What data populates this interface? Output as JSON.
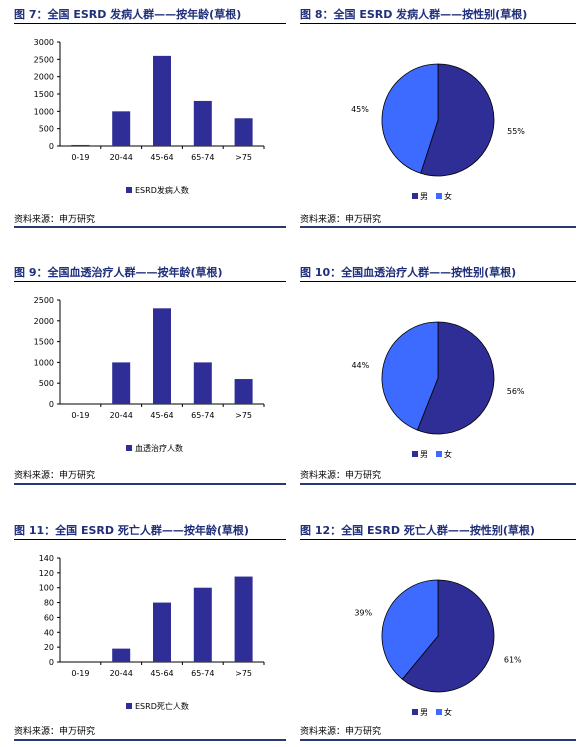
{
  "colors": {
    "navy": "#2e2e96",
    "light_blue": "#3d6bff",
    "title": "#1f2f7a",
    "rule": "#2a3a6e"
  },
  "panels": [
    {
      "title": "图 7：全国 ESRD 发病人群——按年龄(草根)",
      "source": "资料来源：申万研究",
      "chart_data": {
        "type": "bar",
        "categories": [
          "0-19",
          "20-44",
          "45-64",
          "65-74",
          ">75"
        ],
        "series": [
          {
            "name": "ESRD发病人数",
            "values": [
              30,
              1000,
              2600,
              1300,
              800
            ],
            "color": "#2e2e96"
          }
        ],
        "ylim": [
          0,
          3000
        ],
        "yticks": [
          0,
          500,
          1000,
          1500,
          2000,
          2500,
          3000
        ],
        "legend_position": "bottom"
      }
    },
    {
      "title": "图 8：全国 ESRD 发病人群——按性别(草根)",
      "source": "资料来源：申万研究",
      "chart_data": {
        "type": "pie",
        "slices": [
          {
            "name": "男",
            "value": 55,
            "label": "55%",
            "color": "#2e2e96"
          },
          {
            "name": "女",
            "value": 45,
            "label": "45%",
            "color": "#3d6bff"
          }
        ],
        "legend_position": "bottom"
      }
    },
    {
      "title": "图 9：全国血透治疗人群——按年龄(草根)",
      "source": "资料来源：申万研究",
      "chart_data": {
        "type": "bar",
        "categories": [
          "0-19",
          "20-44",
          "45-64",
          "65-74",
          ">75"
        ],
        "series": [
          {
            "name": "血透治疗人数",
            "values": [
              0,
              1000,
              2300,
              1000,
              600
            ],
            "color": "#2e2e96"
          }
        ],
        "ylim": [
          0,
          2500
        ],
        "yticks": [
          0,
          500,
          1000,
          1500,
          2000,
          2500
        ],
        "legend_position": "bottom"
      }
    },
    {
      "title": "图 10：全国血透治疗人群——按性别(草根)",
      "source": "资料来源：申万研究",
      "chart_data": {
        "type": "pie",
        "slices": [
          {
            "name": "男",
            "value": 56,
            "label": "56%",
            "color": "#2e2e96"
          },
          {
            "name": "女",
            "value": 44,
            "label": "44%",
            "color": "#3d6bff"
          }
        ],
        "legend_position": "bottom"
      }
    },
    {
      "title": "图 11：全国 ESRD 死亡人群——按年龄(草根)",
      "source": "资料来源：申万研究",
      "chart_data": {
        "type": "bar",
        "categories": [
          "0-19",
          "20-44",
          "45-64",
          "65-74",
          ">75"
        ],
        "series": [
          {
            "name": "ESRD死亡人数",
            "values": [
              0,
              18,
              80,
              100,
              115
            ],
            "color": "#2e2e96"
          }
        ],
        "ylim": [
          0,
          140
        ],
        "yticks": [
          0,
          20,
          40,
          60,
          80,
          100,
          120,
          140
        ],
        "legend_position": "bottom"
      }
    },
    {
      "title": "图 12：全国 ESRD 死亡人群——按性别(草根)",
      "source": "资料来源：申万研究",
      "chart_data": {
        "type": "pie",
        "slices": [
          {
            "name": "男",
            "value": 61,
            "label": "61%",
            "color": "#2e2e96"
          },
          {
            "name": "女",
            "value": 39,
            "label": "39%",
            "color": "#3d6bff"
          }
        ],
        "legend_position": "bottom"
      }
    }
  ]
}
